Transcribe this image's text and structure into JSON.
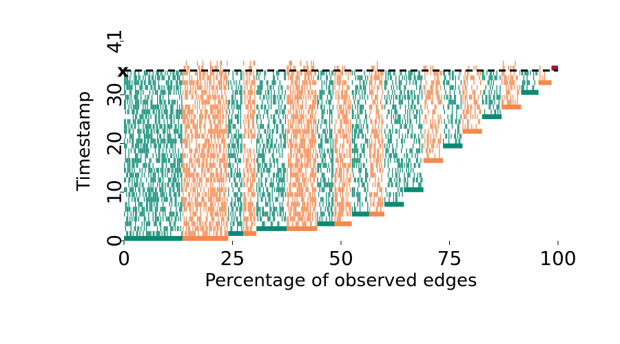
{
  "chart_data": {
    "type": "heatmap",
    "title": "",
    "xlabel": "Percentage of observed edges",
    "ylabel": "Timestamp",
    "xlim": [
      0,
      100
    ],
    "ylim": [
      0,
      41
    ],
    "x_ticks": [
      "0",
      "25",
      "50",
      "75",
      "100"
    ],
    "y_ticks": [
      "0",
      "10",
      "20",
      "30",
      "41"
    ],
    "threshold": {
      "label": "x",
      "timestamp": 35,
      "style": "dashed"
    },
    "colors": {
      "observed_before_threshold": "#0b8a73",
      "observed_after_threshold": "#f4894f",
      "unseen_final": "#a31238"
    },
    "edge_groups": [
      {
        "x_start": 0.0,
        "x_end": 13.5,
        "first_seen": 0,
        "color": "observed_before_threshold",
        "density": 0.55
      },
      {
        "x_start": 13.5,
        "x_end": 24.0,
        "first_seen": 0,
        "color": "observed_after_threshold",
        "density": 0.6
      },
      {
        "x_start": 24.0,
        "x_end": 27.5,
        "first_seen": 1,
        "color": "observed_before_threshold",
        "density": 0.5
      },
      {
        "x_start": 27.5,
        "x_end": 30.5,
        "first_seen": 1,
        "color": "observed_after_threshold",
        "density": 0.55
      },
      {
        "x_start": 30.5,
        "x_end": 37.5,
        "first_seen": 2,
        "color": "observed_before_threshold",
        "density": 0.45
      },
      {
        "x_start": 37.5,
        "x_end": 44.5,
        "first_seen": 2,
        "color": "observed_after_threshold",
        "density": 0.6
      },
      {
        "x_start": 44.5,
        "x_end": 48.5,
        "first_seen": 3,
        "color": "observed_before_threshold",
        "density": 0.45
      },
      {
        "x_start": 48.5,
        "x_end": 52.5,
        "first_seen": 3,
        "color": "observed_after_threshold",
        "density": 0.5
      },
      {
        "x_start": 52.5,
        "x_end": 56.5,
        "first_seen": 5,
        "color": "observed_before_threshold",
        "density": 0.45
      },
      {
        "x_start": 56.5,
        "x_end": 60.0,
        "first_seen": 5,
        "color": "observed_after_threshold",
        "density": 0.5
      },
      {
        "x_start": 60.0,
        "x_end": 64.5,
        "first_seen": 7,
        "color": "observed_before_threshold",
        "density": 0.4
      },
      {
        "x_start": 64.5,
        "x_end": 69.0,
        "first_seen": 10,
        "color": "observed_before_threshold",
        "density": 0.4
      },
      {
        "x_start": 69.0,
        "x_end": 73.5,
        "first_seen": 16,
        "color": "observed_after_threshold",
        "density": 0.45
      },
      {
        "x_start": 73.5,
        "x_end": 78.0,
        "first_seen": 19,
        "color": "observed_before_threshold",
        "density": 0.4
      },
      {
        "x_start": 78.0,
        "x_end": 82.5,
        "first_seen": 22,
        "color": "observed_after_threshold",
        "density": 0.45
      },
      {
        "x_start": 82.5,
        "x_end": 87.0,
        "first_seen": 25,
        "color": "observed_before_threshold",
        "density": 0.4
      },
      {
        "x_start": 87.0,
        "x_end": 91.5,
        "first_seen": 27,
        "color": "observed_after_threshold",
        "density": 0.45
      },
      {
        "x_start": 91.5,
        "x_end": 95.5,
        "first_seen": 30,
        "color": "observed_before_threshold",
        "density": 0.4
      },
      {
        "x_start": 95.5,
        "x_end": 98.5,
        "first_seen": 32,
        "color": "observed_after_threshold",
        "density": 0.4
      },
      {
        "x_start": 98.5,
        "x_end": 100.0,
        "first_seen": 35,
        "color": "unseen_final",
        "density": 0.5
      }
    ]
  }
}
